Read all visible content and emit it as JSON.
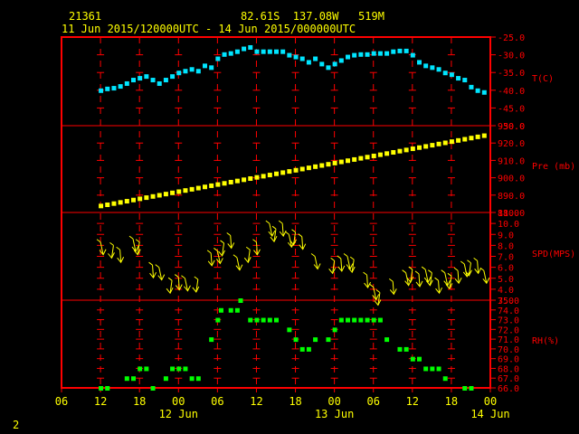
{
  "header": {
    "station": "21361",
    "location": "82.61S  137.08W   519M",
    "time_range": "11 Jun 2015/120000UTC - 14 Jun 2015/000000UTC"
  },
  "footer": {
    "page_number": "2"
  },
  "colors": {
    "frame": "#ff0000",
    "text": "#ffff00",
    "axis_label": "#ff0000",
    "temperature": "#00e5ff",
    "pressure": "#ffff00",
    "wind": "#ffff00",
    "humidity": "#00ff00",
    "background": "#000000"
  },
  "chart_data": {
    "type": "meteogram",
    "grid": true,
    "x_axis": {
      "unit": "hour_UTC",
      "range": [
        "11 Jun 06",
        "14 Jun 00"
      ],
      "tick_hours": [
        6,
        12,
        18,
        24,
        30,
        36,
        42,
        48,
        54,
        60,
        66,
        72
      ],
      "tick_labels": [
        "06",
        "12",
        "18",
        "00",
        "06",
        "12",
        "18",
        "00",
        "06",
        "12",
        "18",
        "00"
      ],
      "date_labels": [
        "12 Jun",
        "13 Jun",
        "14 Jun"
      ]
    },
    "panels": [
      {
        "name": "temperature",
        "ylabel": "T(C)",
        "ylim": [
          -50.0,
          -25.0
        ],
        "tick_labels": [
          "-25.0",
          "-30.0",
          "-35.0",
          "-40.0",
          "-45.0",
          "-50.0"
        ],
        "tick_values": [
          -25.0,
          -30.0,
          -35.0,
          -40.0,
          -45.0,
          -50.0
        ],
        "series": [
          {
            "hour": 12,
            "value": -40.0
          },
          {
            "hour": 13,
            "value": -39.5
          },
          {
            "hour": 14,
            "value": -39.3
          },
          {
            "hour": 15,
            "value": -38.8
          },
          {
            "hour": 16,
            "value": -38.0
          },
          {
            "hour": 17,
            "value": -37.0
          },
          {
            "hour": 18,
            "value": -36.5
          },
          {
            "hour": 19,
            "value": -36.0
          },
          {
            "hour": 20,
            "value": -37.0
          },
          {
            "hour": 21,
            "value": -38.0
          },
          {
            "hour": 22,
            "value": -37.0
          },
          {
            "hour": 23,
            "value": -36.0
          },
          {
            "hour": 24,
            "value": -35.0
          },
          {
            "hour": 25,
            "value": -34.5
          },
          {
            "hour": 26,
            "value": -34.0
          },
          {
            "hour": 27,
            "value": -34.5
          },
          {
            "hour": 28,
            "value": -33.0
          },
          {
            "hour": 29,
            "value": -33.5
          },
          {
            "hour": 30,
            "value": -31.0
          },
          {
            "hour": 31,
            "value": -29.8
          },
          {
            "hour": 32,
            "value": -29.5
          },
          {
            "hour": 33,
            "value": -29.0
          },
          {
            "hour": 34,
            "value": -28.2
          },
          {
            "hour": 35,
            "value": -27.8
          },
          {
            "hour": 36,
            "value": -29.0
          },
          {
            "hour": 37,
            "value": -29.0
          },
          {
            "hour": 38,
            "value": -29.0
          },
          {
            "hour": 39,
            "value": -29.0
          },
          {
            "hour": 40,
            "value": -29.0
          },
          {
            "hour": 41,
            "value": -30.0
          },
          {
            "hour": 42,
            "value": -30.5
          },
          {
            "hour": 43,
            "value": -31.0
          },
          {
            "hour": 44,
            "value": -32.0
          },
          {
            "hour": 45,
            "value": -31.0
          },
          {
            "hour": 46,
            "value": -32.5
          },
          {
            "hour": 47,
            "value": -33.5
          },
          {
            "hour": 48,
            "value": -32.5
          },
          {
            "hour": 49,
            "value": -31.5
          },
          {
            "hour": 50,
            "value": -30.5
          },
          {
            "hour": 51,
            "value": -30.0
          },
          {
            "hour": 52,
            "value": -29.8
          },
          {
            "hour": 53,
            "value": -29.8
          },
          {
            "hour": 54,
            "value": -29.5
          },
          {
            "hour": 55,
            "value": -29.5
          },
          {
            "hour": 56,
            "value": -29.5
          },
          {
            "hour": 57,
            "value": -29.0
          },
          {
            "hour": 58,
            "value": -28.8
          },
          {
            "hour": 59,
            "value": -28.8
          },
          {
            "hour": 60,
            "value": -30.0
          },
          {
            "hour": 61,
            "value": -32.0
          },
          {
            "hour": 62,
            "value": -33.0
          },
          {
            "hour": 63,
            "value": -33.5
          },
          {
            "hour": 64,
            "value": -34.0
          },
          {
            "hour": 65,
            "value": -35.0
          },
          {
            "hour": 66,
            "value": -35.5
          },
          {
            "hour": 67,
            "value": -36.5
          },
          {
            "hour": 68,
            "value": -37.0
          },
          {
            "hour": 69,
            "value": -39.0
          },
          {
            "hour": 70,
            "value": -40.0
          },
          {
            "hour": 71,
            "value": -40.5
          }
        ]
      },
      {
        "name": "pressure",
        "ylabel": "Pre (mb)",
        "ylim": [
          880.0,
          930.0
        ],
        "tick_labels": [
          "930.0",
          "920.0",
          "910.0",
          "900.0",
          "890.0",
          "880.0"
        ],
        "tick_values": [
          930.0,
          920.0,
          910.0,
          900.0,
          890.0,
          880.0
        ],
        "series": {
          "hour_start": 12,
          "hour_end": 71,
          "value_start": 884.0,
          "value_end": 924.5
        }
      },
      {
        "name": "wind",
        "ylabel": "SPD(MPS)",
        "ylim": [
          3.0,
          11.0
        ],
        "tick_labels": [
          "11.0",
          "10.0",
          "9.0",
          "8.0",
          "7.0",
          "6.0",
          "5.0",
          "4.0",
          "3.0"
        ],
        "tick_values": [
          11.0,
          10.0,
          9.0,
          8.0,
          7.0,
          6.0,
          5.0,
          4.0,
          3.0
        ],
        "series": [
          {
            "hour": 12,
            "speed": 8.3
          },
          {
            "hour": 14,
            "speed": 8.0
          },
          {
            "hour": 15,
            "speed": 7.6
          },
          {
            "hour": 17,
            "speed": 8.6
          },
          {
            "hour": 18,
            "speed": 8.3
          },
          {
            "hour": 20,
            "speed": 6.2
          },
          {
            "hour": 21,
            "speed": 6.0
          },
          {
            "hour": 23,
            "speed": 4.8
          },
          {
            "hour": 24,
            "speed": 5.1
          },
          {
            "hour": 25,
            "speed": 5.0
          },
          {
            "hour": 27,
            "speed": 4.9
          },
          {
            "hour": 29,
            "speed": 7.3
          },
          {
            "hour": 30,
            "speed": 7.5
          },
          {
            "hour": 31,
            "speed": 8.2
          },
          {
            "hour": 32,
            "speed": 8.9
          },
          {
            "hour": 33,
            "speed": 6.9
          },
          {
            "hour": 35,
            "speed": 7.6
          },
          {
            "hour": 36,
            "speed": 8.3
          },
          {
            "hour": 38,
            "speed": 10.0
          },
          {
            "hour": 39,
            "speed": 9.5
          },
          {
            "hour": 40,
            "speed": 10.0
          },
          {
            "hour": 41,
            "speed": 9.0
          },
          {
            "hour": 42,
            "speed": 9.2
          },
          {
            "hour": 43,
            "speed": 8.8
          },
          {
            "hour": 45,
            "speed": 7.0
          },
          {
            "hour": 48,
            "speed": 6.6
          },
          {
            "hour": 49,
            "speed": 6.8
          },
          {
            "hour": 50,
            "speed": 7.0
          },
          {
            "hour": 51,
            "speed": 6.7
          },
          {
            "hour": 53,
            "speed": 5.3
          },
          {
            "hour": 54,
            "speed": 4.2
          },
          {
            "hour": 55,
            "speed": 3.7
          },
          {
            "hour": 57,
            "speed": 4.7
          },
          {
            "hour": 59,
            "speed": 5.5
          },
          {
            "hour": 60,
            "speed": 5.8
          },
          {
            "hour": 61,
            "speed": 5.4
          },
          {
            "hour": 62,
            "speed": 5.8
          },
          {
            "hour": 63,
            "speed": 5.5
          },
          {
            "hour": 64,
            "speed": 4.8
          },
          {
            "hour": 65,
            "speed": 5.5
          },
          {
            "hour": 66,
            "speed": 5.2
          },
          {
            "hour": 67,
            "speed": 5.7
          },
          {
            "hour": 68,
            "speed": 6.3
          },
          {
            "hour": 69,
            "speed": 6.4
          },
          {
            "hour": 70,
            "speed": 6.6
          },
          {
            "hour": 71,
            "speed": 5.7
          }
        ]
      },
      {
        "name": "humidity",
        "ylabel": "RH(%)",
        "ylim": [
          66.0,
          75.0
        ],
        "tick_labels": [
          "75.0",
          "74.0",
          "73.0",
          "72.0",
          "71.0",
          "70.0",
          "69.0",
          "68.0",
          "67.0",
          "66.0"
        ],
        "tick_values": [
          75.0,
          74.0,
          73.0,
          72.0,
          71.0,
          70.0,
          69.0,
          68.0,
          67.0,
          66.0
        ],
        "series": [
          {
            "hour": 12,
            "value": 66
          },
          {
            "hour": 13,
            "value": 66
          },
          {
            "hour": 16,
            "value": 67
          },
          {
            "hour": 17,
            "value": 67
          },
          {
            "hour": 18,
            "value": 68
          },
          {
            "hour": 19,
            "value": 68
          },
          {
            "hour": 20,
            "value": 66
          },
          {
            "hour": 22,
            "value": 67
          },
          {
            "hour": 23,
            "value": 68
          },
          {
            "hour": 24,
            "value": 68
          },
          {
            "hour": 25,
            "value": 68
          },
          {
            "hour": 26,
            "value": 67
          },
          {
            "hour": 27,
            "value": 67
          },
          {
            "hour": 29,
            "value": 71
          },
          {
            "hour": 30,
            "value": 73
          },
          {
            "hour": 30.5,
            "value": 74
          },
          {
            "hour": 32,
            "value": 74
          },
          {
            "hour": 33,
            "value": 74
          },
          {
            "hour": 33.5,
            "value": 75
          },
          {
            "hour": 35,
            "value": 73
          },
          {
            "hour": 36,
            "value": 73
          },
          {
            "hour": 37,
            "value": 73
          },
          {
            "hour": 38,
            "value": 73
          },
          {
            "hour": 39,
            "value": 73
          },
          {
            "hour": 41,
            "value": 72
          },
          {
            "hour": 42,
            "value": 71
          },
          {
            "hour": 43,
            "value": 70
          },
          {
            "hour": 44,
            "value": 70
          },
          {
            "hour": 45,
            "value": 71
          },
          {
            "hour": 47,
            "value": 71
          },
          {
            "hour": 48,
            "value": 72
          },
          {
            "hour": 49,
            "value": 73
          },
          {
            "hour": 50,
            "value": 73
          },
          {
            "hour": 51,
            "value": 73
          },
          {
            "hour": 52,
            "value": 73
          },
          {
            "hour": 53,
            "value": 73
          },
          {
            "hour": 54,
            "value": 73
          },
          {
            "hour": 55,
            "value": 73
          },
          {
            "hour": 56,
            "value": 71
          },
          {
            "hour": 58,
            "value": 70
          },
          {
            "hour": 59,
            "value": 70
          },
          {
            "hour": 60,
            "value": 69
          },
          {
            "hour": 61,
            "value": 69
          },
          {
            "hour": 62,
            "value": 68
          },
          {
            "hour": 63,
            "value": 68
          },
          {
            "hour": 64,
            "value": 68
          },
          {
            "hour": 65,
            "value": 67
          },
          {
            "hour": 68,
            "value": 66
          },
          {
            "hour": 69,
            "value": 66
          }
        ]
      }
    ]
  }
}
